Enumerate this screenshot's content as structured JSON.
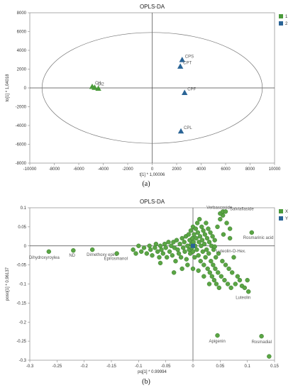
{
  "chart_data": [
    {
      "type": "scatter",
      "panel_label": "(a)",
      "title": "OPLS-DA",
      "xlabel": "t[1] * 1,00006",
      "ylabel": "to[1] * 1,04018",
      "xlim": [
        -10000,
        10000
      ],
      "ylim": [
        -8000,
        8000
      ],
      "xticks": [
        "-10000",
        "-8000",
        "-6000",
        "-4000",
        "-2000",
        "0",
        "2000",
        "4000",
        "6000",
        "8000",
        "10000"
      ],
      "yticks": [
        "-8000",
        "-6000",
        "-4000",
        "-2000",
        "0",
        "2000",
        "4000",
        "6000",
        "8000"
      ],
      "ellipse": {
        "rx": 9000,
        "ry": 5900
      },
      "legend": [
        {
          "name": "1",
          "color": "#4a9a3a"
        },
        {
          "name": "2",
          "color": "#2a6496"
        }
      ],
      "series": [
        {
          "name": "1",
          "color": "#4a9a3a",
          "marker": "triangle",
          "points": [
            {
              "x": -4900,
              "y": 150,
              "label": "CI1"
            },
            {
              "x": -4700,
              "y": 50,
              "label": "CI2"
            },
            {
              "x": -4400,
              "y": -50,
              "label": ""
            }
          ]
        },
        {
          "name": "2",
          "color": "#2a6496",
          "marker": "triangle",
          "points": [
            {
              "x": 2450,
              "y": 3000,
              "label": "CPS"
            },
            {
              "x": 2300,
              "y": 2300,
              "label": "CPT"
            },
            {
              "x": 2650,
              "y": -500,
              "label": "CPF"
            },
            {
              "x": 2350,
              "y": -4600,
              "label": "CPL"
            }
          ]
        }
      ]
    },
    {
      "type": "scatter",
      "panel_label": "(b)",
      "title": "OPLS-DA",
      "xlabel": "pq[1] * 0.99994",
      "ylabel": "poso[1] * 0.96137",
      "xlim": [
        -0.3,
        0.15
      ],
      "ylim": [
        -0.3,
        0.1
      ],
      "xticks": [
        "-0.3",
        "-0.25",
        "-0.2",
        "-0.15",
        "-0.1",
        "-0.05",
        "0",
        "0.05",
        "0.1",
        "0.15"
      ],
      "yticks": [
        "0.1",
        "0.05",
        "0",
        "-0.05",
        "-0.1",
        "-0.15",
        "-0.2",
        "-0.25",
        "-0.3"
      ],
      "legend": [
        {
          "name": "X",
          "color": "#4a9a3a"
        },
        {
          "name": "Y",
          "color": "#2a6496"
        }
      ],
      "labeled_points": [
        {
          "x": -0.265,
          "y": -0.015,
          "label": "Dihydroxyroylea"
        },
        {
          "x": -0.22,
          "y": -0.012,
          "label": "ND"
        },
        {
          "x": -0.185,
          "y": -0.01,
          "label": "Dimethoxy epiro"
        },
        {
          "x": -0.14,
          "y": -0.02,
          "label": "Epirosmanol"
        },
        {
          "x": 0.055,
          "y": 0.09,
          "label": "Verbascoside"
        },
        {
          "x": 0.06,
          "y": 0.09,
          "label": "Salviaflaside"
        },
        {
          "x": 0.108,
          "y": 0.035,
          "label": "Rosmarinic acid"
        },
        {
          "x": 0.04,
          "y": -0.002,
          "label": "Luteolin-O-Hex."
        },
        {
          "x": 0.102,
          "y": -0.12,
          "label": "Luteolin"
        },
        {
          "x": 0.045,
          "y": -0.235,
          "label": "Apigenin"
        },
        {
          "x": 0.126,
          "y": -0.237,
          "label": "Rosmadial"
        },
        {
          "x": 0.14,
          "y": -0.29,
          "label": ""
        }
      ],
      "cluster_points": [
        [
          -0.11,
          -0.01
        ],
        [
          -0.105,
          -0.02
        ],
        [
          -0.1,
          0.0
        ],
        [
          -0.095,
          -0.015
        ],
        [
          -0.09,
          -0.005
        ],
        [
          -0.085,
          -0.02
        ],
        [
          -0.08,
          0.0
        ],
        [
          -0.078,
          -0.01
        ],
        [
          -0.075,
          -0.025
        ],
        [
          -0.07,
          -0.005
        ],
        [
          -0.068,
          0.005
        ],
        [
          -0.065,
          -0.015
        ],
        [
          -0.062,
          -0.03
        ],
        [
          -0.06,
          0.0
        ],
        [
          -0.058,
          -0.01
        ],
        [
          -0.055,
          -0.02
        ],
        [
          -0.052,
          0.005
        ],
        [
          -0.05,
          -0.005
        ],
        [
          -0.048,
          -0.03
        ],
        [
          -0.045,
          0.01
        ],
        [
          -0.043,
          -0.015
        ],
        [
          -0.04,
          0.0
        ],
        [
          -0.038,
          -0.025
        ],
        [
          -0.036,
          0.01
        ],
        [
          -0.034,
          -0.005
        ],
        [
          -0.032,
          -0.04
        ],
        [
          -0.03,
          0.015
        ],
        [
          -0.028,
          -0.01
        ],
        [
          -0.026,
          -0.02
        ],
        [
          -0.024,
          0.005
        ],
        [
          -0.022,
          -0.03
        ],
        [
          -0.02,
          0.02
        ],
        [
          -0.018,
          -0.005
        ],
        [
          -0.016,
          0.01
        ],
        [
          -0.015,
          -0.015
        ],
        [
          -0.013,
          0.025
        ],
        [
          -0.012,
          -0.035
        ],
        [
          -0.01,
          0.0
        ],
        [
          -0.008,
          0.03
        ],
        [
          -0.007,
          -0.01
        ],
        [
          -0.006,
          0.015
        ],
        [
          -0.005,
          -0.02
        ],
        [
          -0.004,
          0.04
        ],
        [
          -0.003,
          0.005
        ],
        [
          -0.002,
          -0.005
        ],
        [
          -0.001,
          0.02
        ],
        [
          0.0,
          0.05
        ],
        [
          0.0,
          -0.015
        ],
        [
          0.001,
          0.01
        ],
        [
          0.002,
          0.03
        ],
        [
          0.003,
          -0.03
        ],
        [
          0.004,
          0.0
        ],
        [
          0.005,
          0.045
        ],
        [
          0.006,
          0.02
        ],
        [
          0.007,
          -0.01
        ],
        [
          0.008,
          0.06
        ],
        [
          0.009,
          0.035
        ],
        [
          0.01,
          -0.025
        ],
        [
          0.011,
          0.01
        ],
        [
          0.012,
          0.07
        ],
        [
          0.013,
          0.025
        ],
        [
          0.014,
          -0.04
        ],
        [
          0.015,
          0.0
        ],
        [
          0.016,
          0.05
        ],
        [
          0.017,
          0.015
        ],
        [
          0.018,
          -0.015
        ],
        [
          0.019,
          0.04
        ],
        [
          0.02,
          -0.05
        ],
        [
          0.021,
          0.005
        ],
        [
          0.022,
          0.03
        ],
        [
          0.023,
          -0.03
        ],
        [
          0.024,
          0.06
        ],
        [
          0.025,
          -0.01
        ],
        [
          0.026,
          0.02
        ],
        [
          0.027,
          -0.06
        ],
        [
          0.028,
          0.045
        ],
        [
          0.029,
          -0.02
        ],
        [
          0.03,
          0.01
        ],
        [
          0.031,
          -0.07
        ],
        [
          0.032,
          0.035
        ],
        [
          0.033,
          -0.04
        ],
        [
          0.034,
          0.0
        ],
        [
          0.035,
          -0.08
        ],
        [
          0.036,
          0.025
        ],
        [
          0.037,
          -0.05
        ],
        [
          0.038,
          -0.01
        ],
        [
          0.039,
          -0.09
        ],
        [
          0.04,
          0.015
        ],
        [
          0.041,
          -0.06
        ],
        [
          0.042,
          -0.03
        ],
        [
          0.043,
          -0.1
        ],
        [
          0.045,
          0.05
        ],
        [
          0.046,
          -0.07
        ],
        [
          0.047,
          -0.02
        ],
        [
          0.048,
          -0.11
        ],
        [
          0.05,
          0.07
        ],
        [
          0.052,
          -0.08
        ],
        [
          0.054,
          -0.04
        ],
        [
          0.056,
          0.03
        ],
        [
          0.058,
          -0.09
        ],
        [
          0.06,
          -0.05
        ],
        [
          0.062,
          0.06
        ],
        [
          0.064,
          -0.1
        ],
        [
          0.066,
          -0.06
        ],
        [
          0.068,
          0.02
        ],
        [
          0.07,
          -0.11
        ],
        [
          0.072,
          -0.07
        ],
        [
          0.075,
          -0.03
        ],
        [
          0.078,
          -0.1
        ],
        [
          0.082,
          -0.08
        ],
        [
          0.086,
          -0.09
        ],
        [
          0.09,
          -0.105
        ],
        [
          0.095,
          -0.11
        ],
        [
          0.1,
          -0.09
        ],
        [
          0.068,
          0.045
        ],
        [
          0.055,
          0.08
        ],
        [
          0.05,
          0.085
        ],
        [
          -0.02,
          -0.06
        ],
        [
          -0.035,
          -0.07
        ],
        [
          -0.06,
          -0.045
        ],
        [
          0.02,
          -0.08
        ],
        [
          0.01,
          -0.065
        ],
        [
          0.03,
          -0.1
        ],
        [
          -0.01,
          -0.05
        ],
        [
          0.0,
          -0.06
        ]
      ],
      "y_marker": {
        "x": 0.0,
        "y": 0.0
      }
    }
  ],
  "captions": {
    "a": "(a)",
    "b": "(b)"
  }
}
